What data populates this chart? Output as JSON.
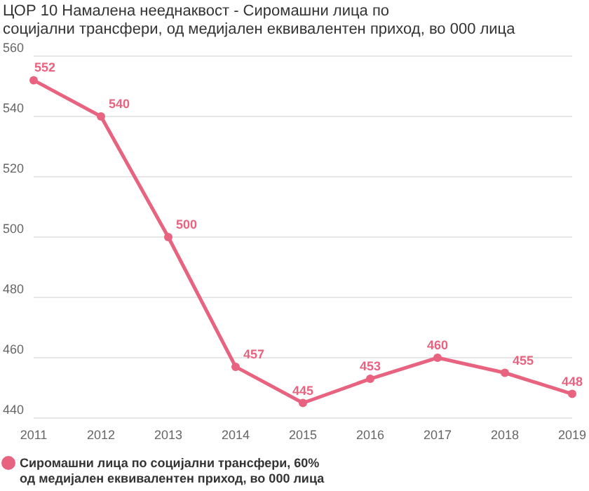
{
  "chart_data": {
    "type": "line",
    "title": "ЦОР 10 Намалена нееднаквост - Сиромашни лица по социјални трансфери, од медијален еквивалентен приход, во 000 лица",
    "categories": [
      "2011",
      "2012",
      "2013",
      "2014",
      "2015",
      "2016",
      "2017",
      "2018",
      "2019"
    ],
    "series": [
      {
        "name": "Сиромашни лица по социјални  трансфери, 60%  од медијален  еквивалентен приход, во 000 лица",
        "color": "#e8637f",
        "values": [
          552,
          540,
          500,
          457,
          445,
          453,
          460,
          455,
          448
        ]
      }
    ],
    "ylim": [
      440,
      560
    ],
    "yticks": [
      440,
      460,
      480,
      500,
      520,
      540,
      560
    ],
    "grid": "y",
    "legend": "bottom",
    "marker": "circle",
    "data_labels": true
  }
}
